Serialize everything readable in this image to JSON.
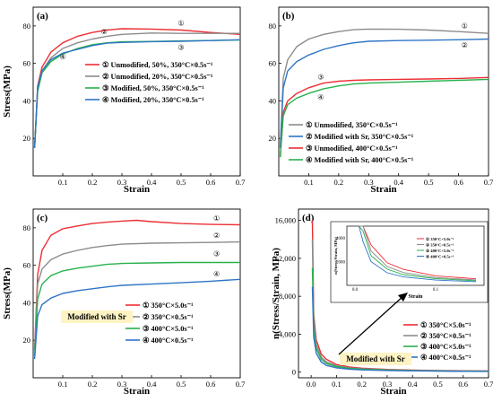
{
  "chart_data": [
    {
      "panel": "(a)",
      "type": "line",
      "xlabel": "Strain",
      "ylabel": "Stress(MPa)",
      "xlim": [
        0,
        0.7
      ],
      "ylim": [
        0,
        90
      ],
      "xticks": [
        "0.1",
        "0.2",
        "0.3",
        "0.4",
        "0.5",
        "0.6",
        "0.7"
      ],
      "yticks": [
        "20",
        "40",
        "60",
        "80"
      ],
      "legend_position": "center-right",
      "series": [
        {
          "name": "① Unmodified, 50%, 350°C×0.5s⁻¹",
          "color": "#ec2f35",
          "marker": "①",
          "x": [
            0.005,
            0.015,
            0.03,
            0.06,
            0.1,
            0.15,
            0.2,
            0.25,
            0.3,
            0.4,
            0.5,
            0.6,
            0.7
          ],
          "y": [
            15,
            48,
            58,
            66,
            71,
            74.5,
            76.5,
            77.8,
            78.5,
            78.3,
            77.8,
            76.5,
            75.5
          ]
        },
        {
          "name": "② Unmodified, 20%, 350°C×0.5s⁻¹",
          "color": "#8c8c8c",
          "marker": "②",
          "x": [
            0.005,
            0.015,
            0.03,
            0.06,
            0.1,
            0.15,
            0.2,
            0.25,
            0.3,
            0.4,
            0.5,
            0.6,
            0.7
          ],
          "y": [
            15,
            47,
            56,
            63,
            68,
            71,
            73,
            74.5,
            75.5,
            76.2,
            76,
            76,
            76
          ]
        },
        {
          "name": "③ Modified, 50%, 350°C×0.5s⁻¹",
          "color": "#28b14c",
          "marker": "③",
          "x": [
            0.005,
            0.015,
            0.03,
            0.06,
            0.1,
            0.15,
            0.2,
            0.25,
            0.3,
            0.4,
            0.5,
            0.6,
            0.7
          ],
          "y": [
            15,
            45,
            55,
            61,
            65,
            68,
            70,
            71,
            71.5,
            71.7,
            72,
            72.2,
            72.5
          ]
        },
        {
          "name": "④ Modified, 20%, 350°C×0.5s⁻¹",
          "color": "#2e75c6",
          "marker": "④",
          "x": [
            0.005,
            0.015,
            0.03,
            0.06,
            0.1,
            0.15,
            0.2,
            0.25,
            0.3,
            0.4,
            0.5,
            0.6,
            0.7
          ],
          "y": [
            15,
            47,
            56,
            62,
            65.5,
            67.5,
            69.5,
            70.8,
            71.2,
            71.6,
            71.8,
            72.2,
            72.6
          ]
        }
      ]
    },
    {
      "panel": "(b)",
      "type": "line",
      "xlabel": "Strain",
      "ylabel": "",
      "xlim": [
        0,
        0.7
      ],
      "ylim": [
        0,
        90
      ],
      "xticks": [
        "0.1",
        "0.2",
        "0.3",
        "0.4",
        "0.5",
        "0.6",
        "0.7"
      ],
      "yticks": [
        "20",
        "40",
        "60",
        "80"
      ],
      "legend_position": "lower-right",
      "series": [
        {
          "name": "① Unmodified, 350°C×0.5s⁻¹",
          "color": "#8c8c8c",
          "marker": "①",
          "x": [
            0.005,
            0.015,
            0.03,
            0.06,
            0.1,
            0.15,
            0.2,
            0.25,
            0.3,
            0.4,
            0.5,
            0.6,
            0.7
          ],
          "y": [
            15,
            52,
            62,
            69,
            73,
            75.5,
            77,
            78,
            78.3,
            78.2,
            77.8,
            77,
            76
          ]
        },
        {
          "name": "② Modified with Sr, 350°C×0.5s⁻¹",
          "color": "#2e75c6",
          "marker": "②",
          "x": [
            0.005,
            0.015,
            0.03,
            0.06,
            0.1,
            0.15,
            0.2,
            0.25,
            0.3,
            0.4,
            0.5,
            0.6,
            0.7
          ],
          "y": [
            15,
            47,
            56,
            61,
            64.5,
            67.5,
            69.5,
            71,
            71.8,
            72.2,
            72.4,
            72.6,
            73
          ]
        },
        {
          "name": "③ Unmodified, 400°C×0.5s⁻¹",
          "color": "#ec2f35",
          "marker": "③",
          "x": [
            0.005,
            0.015,
            0.03,
            0.06,
            0.1,
            0.15,
            0.2,
            0.25,
            0.3,
            0.4,
            0.5,
            0.6,
            0.7
          ],
          "y": [
            10,
            34,
            40,
            44,
            47,
            49.5,
            50.5,
            51,
            51.2,
            51.5,
            51.7,
            52,
            52.5
          ]
        },
        {
          "name": "④ Modified with Sr, 400°C×0.5s⁻¹",
          "color": "#28b14c",
          "marker": "④",
          "x": [
            0.005,
            0.015,
            0.03,
            0.06,
            0.1,
            0.15,
            0.2,
            0.25,
            0.3,
            0.4,
            0.5,
            0.6,
            0.7
          ],
          "y": [
            10,
            32,
            38,
            41.5,
            44,
            46.5,
            48,
            49,
            49.5,
            50,
            50.5,
            51,
            51.5
          ]
        }
      ]
    },
    {
      "panel": "(c)",
      "type": "line",
      "xlabel": "Strain",
      "ylabel": "Stress(MPa)",
      "xlim": [
        0,
        0.7
      ],
      "ylim": [
        0,
        90
      ],
      "xticks": [
        "0.1",
        "0.2",
        "0.3",
        "0.4",
        "0.5",
        "0.6",
        "0.7"
      ],
      "yticks": [
        "20",
        "40",
        "60",
        "80"
      ],
      "legend_position": "lower-right",
      "annotation": "Modified with Sr",
      "series": [
        {
          "name": "① 350°C×5.0s⁻¹",
          "color": "#ec2f35",
          "marker": "①",
          "x": [
            0.005,
            0.015,
            0.03,
            0.06,
            0.1,
            0.15,
            0.2,
            0.25,
            0.3,
            0.35,
            0.4,
            0.5,
            0.6,
            0.7
          ],
          "y": [
            15,
            55,
            68,
            76,
            79.5,
            81,
            82.3,
            83,
            83.6,
            84,
            83.3,
            82.3,
            81.8,
            81.6
          ]
        },
        {
          "name": "② 350°C×0.5s⁻¹",
          "color": "#8c8c8c",
          "marker": "②",
          "x": [
            0.005,
            0.015,
            0.03,
            0.06,
            0.1,
            0.15,
            0.2,
            0.25,
            0.3,
            0.4,
            0.5,
            0.6,
            0.7
          ],
          "y": [
            15,
            50,
            58,
            63,
            66,
            68,
            69.5,
            70.5,
            71.3,
            71.8,
            72,
            72.2,
            72.5
          ]
        },
        {
          "name": "③ 400°C×5.0s⁻¹",
          "color": "#28b14c",
          "marker": "③",
          "x": [
            0.005,
            0.015,
            0.03,
            0.06,
            0.1,
            0.15,
            0.2,
            0.25,
            0.3,
            0.4,
            0.5,
            0.6,
            0.7
          ],
          "y": [
            12,
            42,
            50,
            54.5,
            57,
            58.5,
            59.5,
            60.5,
            61,
            61.3,
            61.5,
            61.5,
            61.5
          ]
        },
        {
          "name": "④ 400°C×0.5s⁻¹",
          "color": "#2e75c6",
          "marker": "④",
          "x": [
            0.005,
            0.015,
            0.03,
            0.06,
            0.1,
            0.15,
            0.2,
            0.25,
            0.3,
            0.4,
            0.5,
            0.6,
            0.7
          ],
          "y": [
            10,
            33,
            39,
            42.5,
            45,
            46.5,
            47.5,
            48.5,
            49.3,
            50,
            50.7,
            51.5,
            52.5
          ]
        }
      ]
    },
    {
      "panel": "(d)",
      "type": "line",
      "xlabel": "Strain",
      "ylabel": "n(Stress/Strain, MPa)",
      "xlim": [
        -0.05,
        0.7
      ],
      "ylim": [
        -600,
        17200
      ],
      "xticks": [
        "0.0",
        "0.1",
        "0.2",
        "0.3",
        "0.4",
        "0.5",
        "0.6",
        "0.7"
      ],
      "yticks": [
        "0",
        "4,000",
        "8,000",
        "12,000",
        "16,000"
      ],
      "legend_position": "lower-right",
      "annotation": "Modified with Sr",
      "inset": {
        "xlabel": "Strain",
        "ylabel": "n(Stress/Strain, MPa)",
        "xticks": [
          "0.0",
          "0.1"
        ],
        "yticks": [
          "4000",
          "2000"
        ],
        "legend": [
          "① 350°C×5.0s⁻¹",
          "② 350°C×0.5s⁻¹",
          "③ 400°C×5.0s⁻¹",
          "④ 400°C×0.5s⁻¹"
        ]
      },
      "series": [
        {
          "name": "① 350°C×5.0s⁻¹",
          "color": "#ec2f35",
          "marker": "①",
          "x": [
            0.005,
            0.01,
            0.02,
            0.04,
            0.06,
            0.1,
            0.15,
            0.2,
            0.3,
            0.4,
            0.5,
            0.6,
            0.7
          ],
          "y": [
            16000,
            6000,
            3400,
            1900,
            1350,
            800,
            550,
            410,
            280,
            210,
            165,
            135,
            117
          ]
        },
        {
          "name": "② 350°C×0.5s⁻¹",
          "color": "#8c8c8c",
          "marker": "②",
          "x": [
            0.005,
            0.01,
            0.02,
            0.04,
            0.06,
            0.1,
            0.15,
            0.2,
            0.3,
            0.4,
            0.5,
            0.6,
            0.7
          ],
          "y": [
            14000,
            5300,
            2900,
            1580,
            1080,
            660,
            455,
            350,
            238,
            180,
            144,
            120,
            104
          ]
        },
        {
          "name": "③ 400°C×5.0s⁻¹",
          "color": "#28b14c",
          "marker": "③",
          "x": [
            0.005,
            0.01,
            0.02,
            0.04,
            0.06,
            0.1,
            0.15,
            0.2,
            0.3,
            0.4,
            0.5,
            0.6,
            0.7
          ],
          "y": [
            11000,
            4600,
            2500,
            1360,
            910,
            570,
            390,
            297,
            203,
            153,
            123,
            103,
            88
          ]
        },
        {
          "name": "④ 400°C×0.5s⁻¹",
          "color": "#2e75c6",
          "marker": "④",
          "x": [
            0.005,
            0.01,
            0.02,
            0.04,
            0.06,
            0.1,
            0.15,
            0.2,
            0.3,
            0.4,
            0.5,
            0.6,
            0.7
          ],
          "y": [
            9000,
            3700,
            2000,
            1060,
            710,
            450,
            310,
            237,
            164,
            125,
            101,
            86,
            75
          ]
        }
      ]
    }
  ]
}
